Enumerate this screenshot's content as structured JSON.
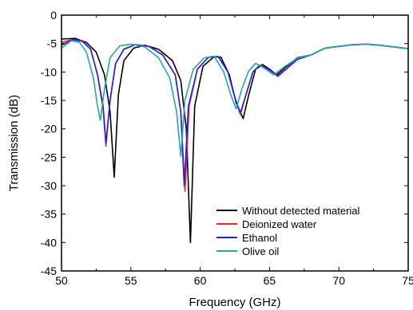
{
  "chart_data": {
    "type": "line",
    "title": "",
    "xlabel": "Frequency (GHz)",
    "ylabel": "Transmission (dB)",
    "xlim": [
      50,
      75
    ],
    "ylim": [
      -45,
      0
    ],
    "x_ticks": [
      "50",
      "55",
      "60",
      "65",
      "70",
      "75"
    ],
    "y_ticks": [
      "0",
      "-5",
      "-10",
      "-15",
      "-20",
      "-25",
      "-30",
      "-35",
      "-40",
      "-45"
    ],
    "grid": false,
    "legend_position": "lower-right",
    "series": [
      {
        "name": "Without detected material",
        "color": "#000000",
        "points": [
          [
            50,
            -4.2
          ],
          [
            51,
            -4.1
          ],
          [
            51.8,
            -4.8
          ],
          [
            52.5,
            -6.5
          ],
          [
            53.1,
            -10.5
          ],
          [
            53.5,
            -17
          ],
          [
            53.8,
            -28.5
          ],
          [
            54.1,
            -14
          ],
          [
            54.5,
            -8
          ],
          [
            55.2,
            -5.8
          ],
          [
            56,
            -5.3
          ],
          [
            57,
            -6
          ],
          [
            58,
            -8
          ],
          [
            58.6,
            -11.5
          ],
          [
            59,
            -20
          ],
          [
            59.3,
            -40
          ],
          [
            59.6,
            -16
          ],
          [
            60.2,
            -9
          ],
          [
            61,
            -7.3
          ],
          [
            61.5,
            -7.4
          ],
          [
            62.1,
            -10.5
          ],
          [
            62.6,
            -15.5
          ],
          [
            63.1,
            -18.2
          ],
          [
            63.5,
            -14
          ],
          [
            64,
            -9.5
          ],
          [
            64.5,
            -8.7
          ],
          [
            65,
            -9.5
          ],
          [
            65.5,
            -10.5
          ],
          [
            66,
            -9.5
          ],
          [
            67,
            -7.5
          ],
          [
            68,
            -7
          ],
          [
            69,
            -5.8
          ],
          [
            70,
            -5.5
          ],
          [
            71,
            -5.2
          ],
          [
            72,
            -5.1
          ],
          [
            73,
            -5.3
          ],
          [
            74,
            -5.6
          ],
          [
            75,
            -5.9
          ]
        ]
      },
      {
        "name": "Deionized water",
        "color": "#ff1c1c",
        "points": [
          [
            50,
            -4.8
          ],
          [
            50.8,
            -4.3
          ],
          [
            51.5,
            -4.5
          ],
          [
            52.1,
            -6
          ],
          [
            52.6,
            -10.5
          ],
          [
            53,
            -16.5
          ],
          [
            53.2,
            -23
          ],
          [
            53.5,
            -15
          ],
          [
            53.9,
            -8.5
          ],
          [
            54.5,
            -6
          ],
          [
            55.3,
            -5.2
          ],
          [
            56.3,
            -5.5
          ],
          [
            57.3,
            -7
          ],
          [
            58.2,
            -10.5
          ],
          [
            58.6,
            -17
          ],
          [
            58.9,
            -31
          ],
          [
            59.2,
            -16
          ],
          [
            59.8,
            -9.5
          ],
          [
            60.6,
            -7.4
          ],
          [
            61.3,
            -7.3
          ],
          [
            62,
            -10
          ],
          [
            62.5,
            -14.5
          ],
          [
            62.9,
            -17.5
          ],
          [
            63.3,
            -14
          ],
          [
            63.8,
            -10
          ],
          [
            64.3,
            -8.8
          ],
          [
            64.9,
            -9.5
          ],
          [
            65.6,
            -10.8
          ],
          [
            66.2,
            -9.5
          ],
          [
            67,
            -7.8
          ],
          [
            68,
            -7
          ],
          [
            69,
            -5.8
          ],
          [
            70,
            -5.5
          ],
          [
            71,
            -5.2
          ],
          [
            72,
            -5.1
          ],
          [
            73,
            -5.3
          ],
          [
            74,
            -5.6
          ],
          [
            75,
            -5.9
          ]
        ]
      },
      {
        "name": "Ethanol",
        "color": "#2020ee",
        "points": [
          [
            50,
            -5.3
          ],
          [
            50.8,
            -4.3
          ],
          [
            51.5,
            -4.6
          ],
          [
            52.1,
            -6
          ],
          [
            52.6,
            -10.5
          ],
          [
            53,
            -16
          ],
          [
            53.2,
            -22.5
          ],
          [
            53.5,
            -15
          ],
          [
            53.9,
            -8.5
          ],
          [
            54.5,
            -6
          ],
          [
            55.3,
            -5.2
          ],
          [
            56.3,
            -5.5
          ],
          [
            57.3,
            -7
          ],
          [
            58.2,
            -10.5
          ],
          [
            58.6,
            -17
          ],
          [
            58.85,
            -30
          ],
          [
            59.15,
            -16
          ],
          [
            59.8,
            -9.5
          ],
          [
            60.6,
            -7.4
          ],
          [
            61.3,
            -7.3
          ],
          [
            62,
            -10
          ],
          [
            62.5,
            -14.5
          ],
          [
            62.9,
            -17.2
          ],
          [
            63.3,
            -14
          ],
          [
            63.8,
            -10
          ],
          [
            64.3,
            -8.8
          ],
          [
            64.9,
            -9.5
          ],
          [
            65.6,
            -10.6
          ],
          [
            66.2,
            -9.5
          ],
          [
            67,
            -7.8
          ],
          [
            68,
            -7
          ],
          [
            69,
            -5.8
          ],
          [
            70,
            -5.5
          ],
          [
            71,
            -5.2
          ],
          [
            72,
            -5.1
          ],
          [
            73,
            -5.3
          ],
          [
            74,
            -5.6
          ],
          [
            75,
            -5.9
          ]
        ]
      },
      {
        "name": "Olive oil",
        "color": "#20a8a8",
        "points": [
          [
            50,
            -5.8
          ],
          [
            50.7,
            -4.5
          ],
          [
            51.3,
            -4.8
          ],
          [
            51.8,
            -6.5
          ],
          [
            52.3,
            -11
          ],
          [
            52.6,
            -16
          ],
          [
            52.8,
            -18.5
          ],
          [
            53.1,
            -13
          ],
          [
            53.5,
            -7.5
          ],
          [
            54.2,
            -5.4
          ],
          [
            55,
            -5.1
          ],
          [
            56,
            -5.6
          ],
          [
            57,
            -7.5
          ],
          [
            57.8,
            -11
          ],
          [
            58.3,
            -17
          ],
          [
            58.6,
            -24.8
          ],
          [
            58.9,
            -15
          ],
          [
            59.5,
            -9.5
          ],
          [
            60.3,
            -7.5
          ],
          [
            61,
            -7.2
          ],
          [
            61.7,
            -10
          ],
          [
            62.2,
            -14
          ],
          [
            62.6,
            -16.5
          ],
          [
            63,
            -13
          ],
          [
            63.5,
            -9.8
          ],
          [
            64,
            -8.5
          ],
          [
            64.6,
            -9.3
          ],
          [
            65.3,
            -10.5
          ],
          [
            66,
            -9.2
          ],
          [
            67,
            -7.6
          ],
          [
            68,
            -7
          ],
          [
            69,
            -5.8
          ],
          [
            70,
            -5.5
          ],
          [
            71,
            -5.2
          ],
          [
            72,
            -5.1
          ],
          [
            73,
            -5.3
          ],
          [
            74,
            -5.6
          ],
          [
            75,
            -5.9
          ]
        ]
      }
    ]
  }
}
